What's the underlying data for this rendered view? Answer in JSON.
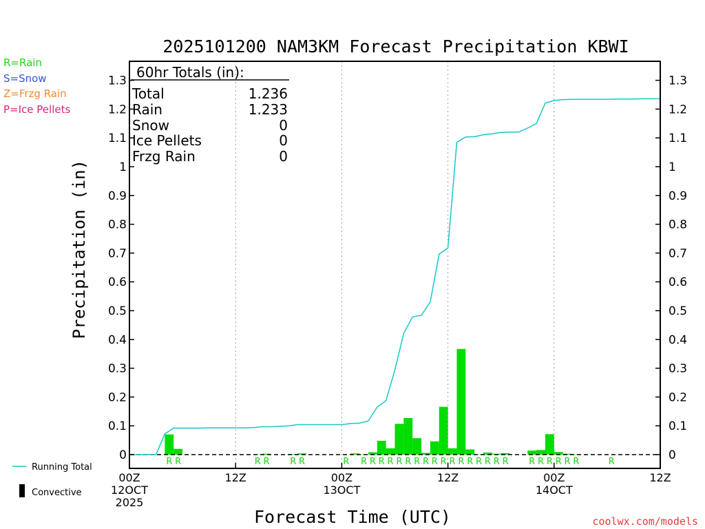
{
  "chart_data": {
    "type": "bar",
    "title": "2025101200 NAM3KM Forecast Precipitation KBWI",
    "xlabel": "Forecast Time (UTC)",
    "ylabel": "Precipitation (in)",
    "ylim": [
      0,
      1.35
    ],
    "y_ticks": [
      0,
      0.1,
      0.2,
      0.3,
      0.4,
      0.5,
      0.6,
      0.7,
      0.8,
      0.9,
      1,
      1.1,
      1.2,
      1.3
    ],
    "y_tick_labels": [
      "0",
      "0.1",
      "0.2",
      "0.3",
      "0.4",
      "0.5",
      "0.6",
      "0.7",
      "0.8",
      "0.9",
      "1",
      "1.1",
      "1.2",
      "1.3"
    ],
    "x_unit": "forecast hour",
    "xlim": [
      0,
      60
    ],
    "x_ticks": [
      {
        "hour": 0,
        "lines": [
          "00Z",
          "12OCT",
          "2025"
        ]
      },
      {
        "hour": 12,
        "lines": [
          "12Z"
        ]
      },
      {
        "hour": 24,
        "lines": [
          "00Z",
          "13OCT"
        ]
      },
      {
        "hour": 36,
        "lines": [
          "12Z"
        ]
      },
      {
        "hour": 48,
        "lines": [
          "00Z",
          "14OCT"
        ]
      },
      {
        "hour": 60,
        "lines": [
          "12Z"
        ]
      }
    ],
    "grid": "vertical dotted at 12Z/00Z",
    "totals_box": {
      "heading": "60hr Totals (in):",
      "rows": [
        {
          "label": "Total",
          "value": "1.236"
        },
        {
          "label": "Rain",
          "value": "1.233"
        },
        {
          "label": "Snow",
          "value": "0"
        },
        {
          "label": "Ice Pellets",
          "value": "0"
        },
        {
          "label": "Frzg Rain",
          "value": "0"
        }
      ]
    },
    "series": [
      {
        "name": "Running Total",
        "kind": "line",
        "color": "#14c8c8",
        "x": [
          0,
          1,
          2,
          3,
          4,
          5,
          6,
          7,
          8,
          9,
          10,
          11,
          12,
          13,
          14,
          15,
          16,
          17,
          18,
          19,
          20,
          21,
          22,
          23,
          24,
          25,
          26,
          27,
          28,
          29,
          30,
          31,
          32,
          33,
          34,
          35,
          36,
          37,
          38,
          39,
          40,
          41,
          42,
          43,
          44,
          45,
          46,
          47,
          48,
          49,
          50,
          51,
          52,
          53,
          54,
          55,
          56,
          57,
          58,
          59,
          60
        ],
        "values": [
          0,
          0,
          0,
          0,
          0.072,
          0.092,
          0.092,
          0.092,
          0.092,
          0.093,
          0.093,
          0.093,
          0.093,
          0.093,
          0.094,
          0.097,
          0.097,
          0.098,
          0.1,
          0.104,
          0.104,
          0.104,
          0.104,
          0.104,
          0.104,
          0.108,
          0.109,
          0.117,
          0.165,
          0.187,
          0.294,
          0.421,
          0.478,
          0.484,
          0.53,
          0.696,
          0.718,
          1.085,
          1.103,
          1.104,
          1.111,
          1.114,
          1.119,
          1.12,
          1.12,
          1.134,
          1.15,
          1.221,
          1.23,
          1.233,
          1.234,
          1.234,
          1.234,
          1.234,
          1.234,
          1.235,
          1.235,
          1.235,
          1.236,
          1.236,
          1.236
        ]
      },
      {
        "name": "Hourly Precipitation",
        "kind": "bar",
        "color": "#00dd00",
        "x_start": [
          4,
          5,
          14,
          15,
          18,
          19,
          24,
          25,
          26,
          27,
          28,
          29,
          30,
          31,
          32,
          33,
          34,
          35,
          36,
          37,
          38,
          39,
          40,
          41,
          42,
          43,
          44,
          45,
          46,
          47,
          48,
          49,
          50,
          51,
          52,
          53,
          54,
          55,
          56,
          57,
          58,
          59
        ],
        "values": [
          0.07,
          0.02,
          0.001,
          0.003,
          0.002,
          0.004,
          0.0,
          0.004,
          0.001,
          0.008,
          0.048,
          0.022,
          0.107,
          0.127,
          0.057,
          0.006,
          0.046,
          0.166,
          0.022,
          0.367,
          0.018,
          0.001,
          0.007,
          0.003,
          0.005,
          0.0,
          0.0,
          0.014,
          0.016,
          0.071,
          0.009,
          0.003,
          0.001,
          0.0,
          0.0,
          0.0,
          0.0,
          0.0,
          0.001,
          0.0,
          0.0,
          0.0
        ]
      }
    ],
    "ptype_markers": {
      "letter": "R",
      "hours": [
        4,
        5,
        14,
        15,
        18,
        19,
        24,
        26,
        27,
        28,
        29,
        30,
        31,
        32,
        33,
        34,
        35,
        36,
        37,
        38,
        39,
        40,
        41,
        42,
        45,
        46,
        47,
        48,
        49,
        50,
        54
      ]
    },
    "legend": {
      "ptype": [
        {
          "text": "R=Rain",
          "color": "#1ad41a"
        },
        {
          "text": "S=Snow",
          "color": "#3355dd"
        },
        {
          "text": "Z=Frzg Rain",
          "color": "#ef8a2e"
        },
        {
          "text": "P=Ice Pellets",
          "color": "#e0207a"
        }
      ],
      "running_total_label": "Running Total",
      "convective_label": "Convective"
    },
    "credit": "coolwx.com/models"
  }
}
